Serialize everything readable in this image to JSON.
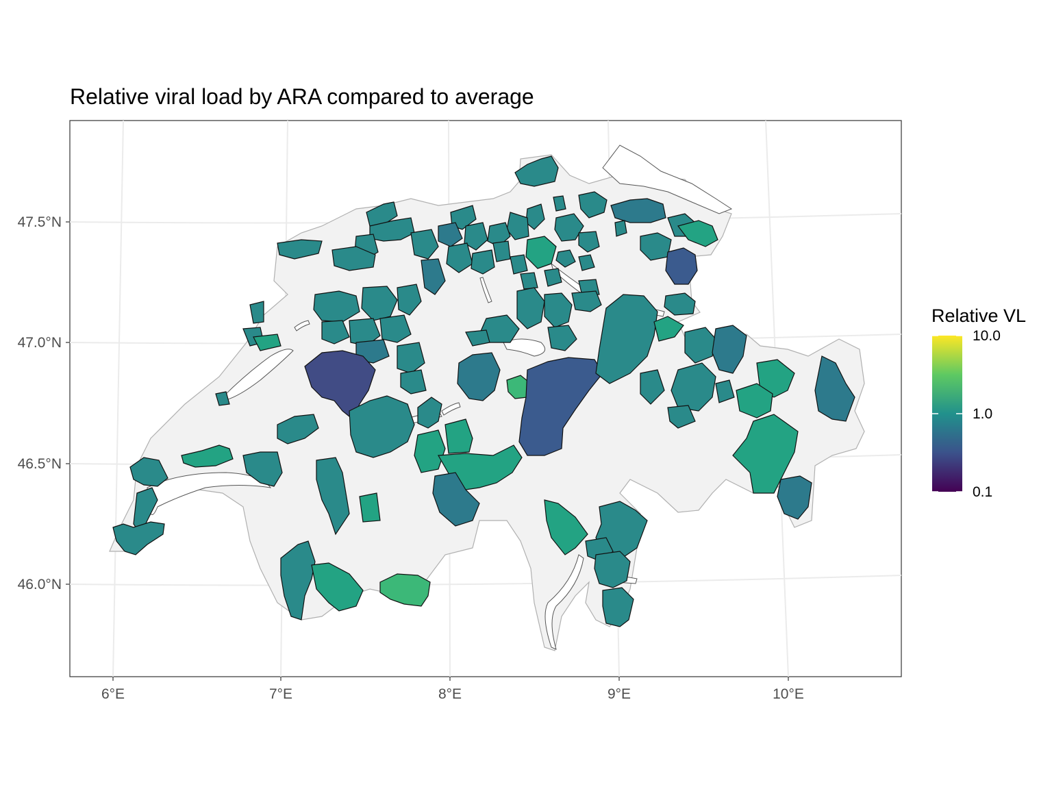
{
  "title": "Relative viral load by ARA compared to average",
  "map": {
    "x_axis": {
      "ticks": [
        "6°E",
        "7°E",
        "8°E",
        "9°E",
        "10°E"
      ]
    },
    "y_axis": {
      "ticks": [
        "47.5°N",
        "47.0°N",
        "46.5°N",
        "46.0°N"
      ]
    }
  },
  "legend": {
    "title": "Relative VL",
    "scale": "log",
    "ticks": [
      "10.0",
      "1.0",
      "0.1"
    ],
    "palette": [
      "#440154",
      "#3b528b",
      "#21918c",
      "#5ec962",
      "#fde725"
    ]
  },
  "colors": {
    "background_region": "#f2f2f2",
    "teal": "#2a8a8a",
    "teal_dark": "#2d7a8c",
    "green_teal": "#23a383",
    "green": "#3cb878",
    "blue": "#3b5b8e",
    "blue_dark": "#414c85"
  }
}
